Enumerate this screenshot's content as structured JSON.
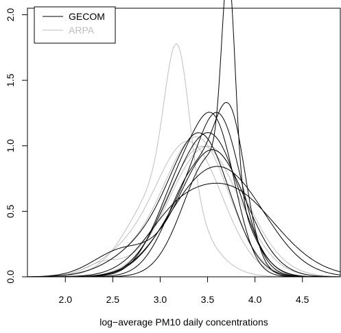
{
  "chart_data": {
    "type": "line",
    "title": "",
    "xlabel": "log−average PM10 daily concentrations",
    "ylabel": "",
    "xlim": [
      1.6,
      4.9
    ],
    "ylim": [
      0.0,
      2.05
    ],
    "x_ticks": [
      2.0,
      2.5,
      3.0,
      3.5,
      4.0,
      4.5
    ],
    "x_tick_labels": [
      "2.0",
      "2.5",
      "3.0",
      "3.5",
      "4.0",
      "4.5"
    ],
    "y_ticks": [
      0.0,
      0.5,
      1.0,
      1.5,
      2.0
    ],
    "y_tick_labels": [
      "0.0",
      "0.5",
      "1.0",
      "1.5",
      "2.0"
    ],
    "grid": false,
    "legend": {
      "position": "top-left",
      "entries": [
        {
          "label": "GECOM",
          "color": "#000000"
        },
        {
          "label": "ARPA",
          "color": "#bebebe"
        }
      ]
    },
    "series": [
      {
        "group": "GECOM",
        "color": "#000000",
        "components": [
          {
            "m": 3.72,
            "s": 0.07,
            "w": 0.27
          },
          {
            "m": 3.55,
            "s": 0.3,
            "w": 0.7
          }
        ]
      },
      {
        "group": "GECOM",
        "color": "#000000",
        "components": [
          {
            "m": 3.75,
            "s": 0.16,
            "w": 0.35
          },
          {
            "m": 3.4,
            "s": 0.3,
            "w": 0.62
          }
        ]
      },
      {
        "group": "GECOM",
        "color": "#000000",
        "components": [
          {
            "m": 3.65,
            "s": 0.22,
            "w": 0.45
          },
          {
            "m": 3.35,
            "s": 0.35,
            "w": 0.52
          }
        ]
      },
      {
        "group": "GECOM",
        "color": "#000000",
        "components": [
          {
            "m": 3.62,
            "s": 0.2,
            "w": 0.35
          },
          {
            "m": 3.3,
            "s": 0.3,
            "w": 0.63
          }
        ]
      },
      {
        "group": "GECOM",
        "color": "#000000",
        "components": [
          {
            "m": 3.6,
            "s": 0.28,
            "w": 0.6
          },
          {
            "m": 3.2,
            "s": 0.3,
            "w": 0.37
          }
        ]
      },
      {
        "group": "GECOM",
        "color": "#000000",
        "components": [
          {
            "m": 3.72,
            "s": 0.42,
            "w": 0.75
          },
          {
            "m": 3.25,
            "s": 0.35,
            "w": 0.23
          }
        ]
      },
      {
        "group": "GECOM",
        "color": "#000000",
        "components": [
          {
            "m": 3.7,
            "s": 0.5,
            "w": 0.85
          },
          {
            "m": 3.1,
            "s": 0.3,
            "w": 0.15
          }
        ]
      },
      {
        "group": "GECOM",
        "color": "#000000",
        "components": [
          {
            "m": 3.45,
            "s": 0.3,
            "w": 0.7
          },
          {
            "m": 3.0,
            "s": 0.4,
            "w": 0.3
          }
        ]
      },
      {
        "group": "GECOM",
        "color": "#000000",
        "components": [
          {
            "m": 3.55,
            "s": 0.35,
            "w": 0.85
          },
          {
            "m": 2.6,
            "s": 0.3,
            "w": 0.15
          }
        ]
      },
      {
        "group": "ARPA",
        "color": "#bebebe",
        "components": [
          {
            "m": 3.18,
            "s": 0.13,
            "w": 0.36
          },
          {
            "m": 3.05,
            "s": 0.35,
            "w": 0.63
          }
        ]
      },
      {
        "group": "ARPA",
        "color": "#bebebe",
        "components": [
          {
            "m": 3.3,
            "s": 0.35,
            "w": 0.9
          },
          {
            "m": 2.6,
            "s": 0.3,
            "w": 0.1
          }
        ]
      },
      {
        "group": "ARPA",
        "color": "#bebebe",
        "components": [
          {
            "m": 3.4,
            "s": 0.33,
            "w": 0.85
          },
          {
            "m": 2.8,
            "s": 0.35,
            "w": 0.15
          }
        ]
      },
      {
        "group": "ARPA",
        "color": "#bebebe",
        "components": [
          {
            "m": 3.45,
            "s": 0.38,
            "w": 0.95
          },
          {
            "m": 2.4,
            "s": 0.2,
            "w": 0.05
          }
        ]
      },
      {
        "group": "ARPA",
        "color": "#bebebe",
        "components": [
          {
            "m": 3.5,
            "s": 0.4,
            "w": 1.0
          }
        ]
      }
    ]
  }
}
